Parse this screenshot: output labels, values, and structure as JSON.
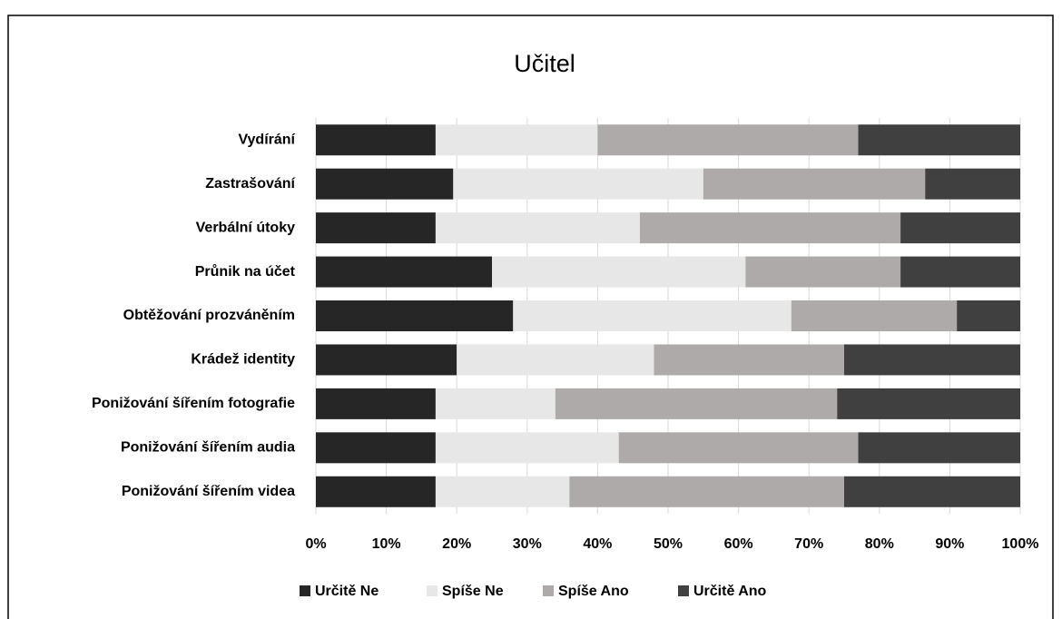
{
  "chart_data": {
    "type": "stacked_barh",
    "title": "Učitel",
    "categories": [
      "Vydírání",
      "Zastrašování",
      "Verbální útoky",
      "Průnik na účet",
      "Obtěžování prozváněním",
      "Krádež identity",
      "Ponižování šířením fotografie",
      "Ponižování šířením audia",
      "Ponižování šířením videa"
    ],
    "series": [
      {
        "name": "Určitě Ne",
        "color": "#262626",
        "values": [
          17,
          19.5,
          17,
          25,
          28,
          20,
          17,
          17,
          17
        ]
      },
      {
        "name": "Spíše Ne",
        "color": "#e7e7e7",
        "values": [
          23,
          35.5,
          29,
          36,
          39.5,
          28,
          17,
          26,
          19
        ]
      },
      {
        "name": "Spíše Ano",
        "color": "#aeaaaa",
        "values": [
          37,
          31.5,
          37,
          22,
          23.5,
          27,
          40,
          34,
          39
        ]
      },
      {
        "name": "Určitě Ano",
        "color": "#404040",
        "values": [
          23,
          13.5,
          17,
          17,
          9,
          25,
          26,
          23,
          25
        ]
      }
    ],
    "xlim": [
      0,
      100
    ],
    "xticks": [
      {
        "value": 0,
        "label": "0%"
      },
      {
        "value": 10,
        "label": "10%"
      },
      {
        "value": 20,
        "label": "20%"
      },
      {
        "value": 30,
        "label": "30%"
      },
      {
        "value": 40,
        "label": "40%"
      },
      {
        "value": 50,
        "label": "50%"
      },
      {
        "value": 60,
        "label": "60%"
      },
      {
        "value": 70,
        "label": "70%"
      },
      {
        "value": 80,
        "label": "80%"
      },
      {
        "value": 90,
        "label": "90%"
      },
      {
        "value": 100,
        "label": "100%"
      }
    ],
    "grid": true,
    "legend": "bottom"
  }
}
